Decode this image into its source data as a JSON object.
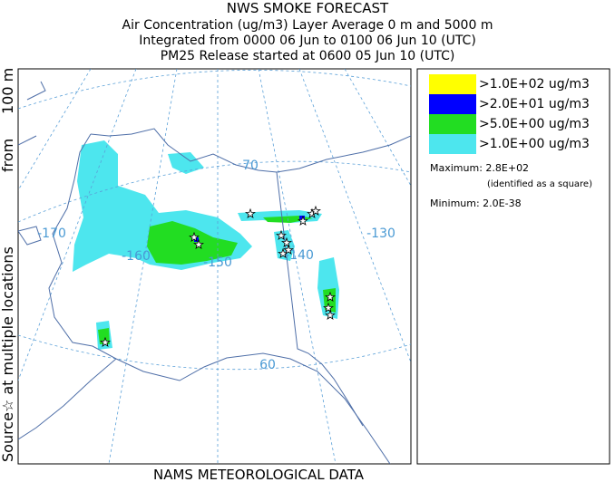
{
  "header": {
    "lines": [
      "NWS SMOKE FORECAST",
      "Air Concentration (ug/m3) Layer Average    0 m and  5000 m",
      "Integrated from 0000 06 Jun to 0100 06 Jun 10 (UTC)",
      "PM25 Release started at 0600 05 Jun 10 (UTC)"
    ]
  },
  "side_label": [
    "Source☆ at multiple locations",
    "from",
    "100 m"
  ],
  "footer": "NAMS METEOROLOGICAL DATA",
  "map": {
    "graticule_labels": [
      "70",
      "-170",
      "-160",
      "-150",
      "-140",
      "-130",
      "60"
    ]
  },
  "legend": {
    "items": [
      {
        "label": ">1.0E+02 ug/m3",
        "color": "#ffff00"
      },
      {
        "label": ">2.0E+01 ug/m3",
        "color": "#0000ff"
      },
      {
        "label": ">5.0E+00 ug/m3",
        "color": "#22dd22"
      },
      {
        "label": ">1.0E+00 ug/m3",
        "color": "#4de6ee"
      }
    ],
    "maximum": "Maximum: 2.8E+02",
    "maximum_note": "(identified as a square)",
    "minimum": "Minimum: 2.0E-38"
  }
}
